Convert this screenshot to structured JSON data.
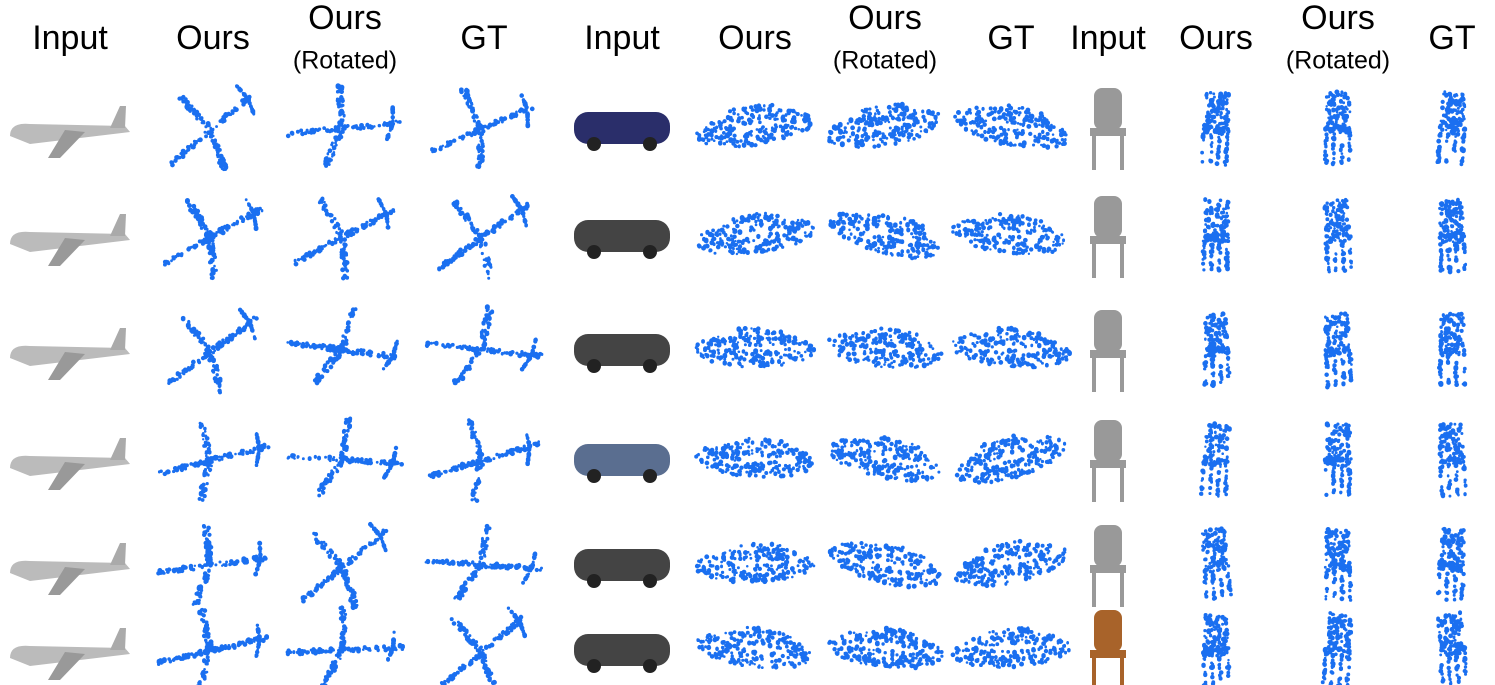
{
  "columns": [
    {
      "title": "Input"
    },
    {
      "title": "Ours"
    },
    {
      "title": "Ours",
      "subtitle": "(Rotated)"
    },
    {
      "title": "GT"
    },
    {
      "title": "Input"
    },
    {
      "title": "Ours"
    },
    {
      "title": "Ours",
      "subtitle": "(Rotated)"
    },
    {
      "title": "GT"
    },
    {
      "title": "Input"
    },
    {
      "title": "Ours"
    },
    {
      "title": "Ours",
      "subtitle": "(Rotated)"
    },
    {
      "title": "GT"
    }
  ]
}
